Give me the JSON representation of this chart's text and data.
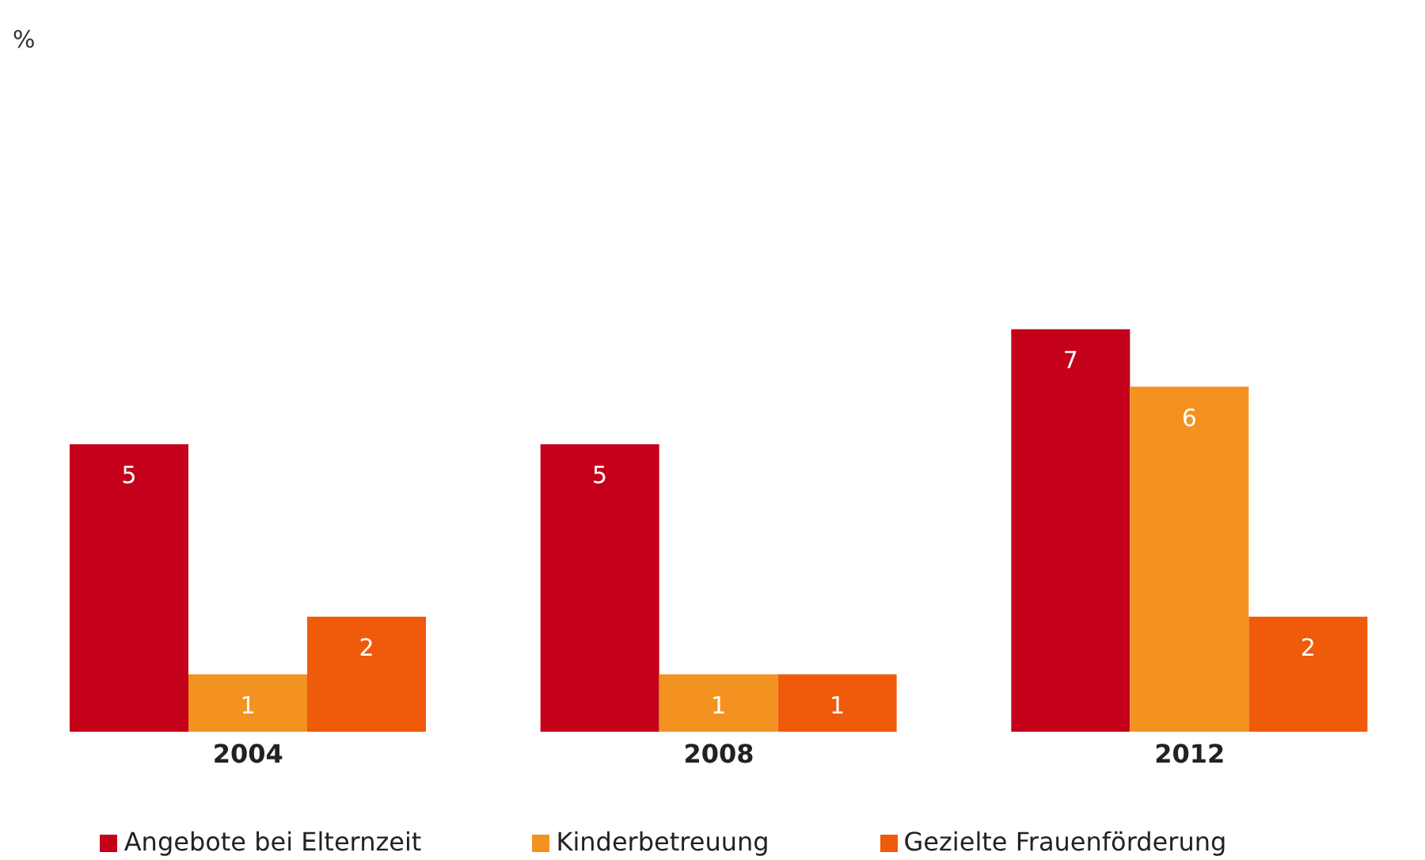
{
  "chart_data": {
    "type": "bar",
    "annotations": [
      "%"
    ],
    "categories": [
      "2004",
      "2008",
      "2012"
    ],
    "series": [
      {
        "name": "Angebote bei Elternzeit",
        "color": "#c4001a",
        "values": [
          5,
          5,
          7
        ]
      },
      {
        "name": "Kinderbetreuung",
        "color": "#f39220",
        "values": [
          1,
          1,
          6
        ]
      },
      {
        "name": "Gezielte Frauenförderung",
        "color": "#ef5a0b",
        "values": [
          2,
          1,
          2
        ]
      }
    ],
    "data_labels": true,
    "grid": false,
    "legend": "bottom"
  }
}
